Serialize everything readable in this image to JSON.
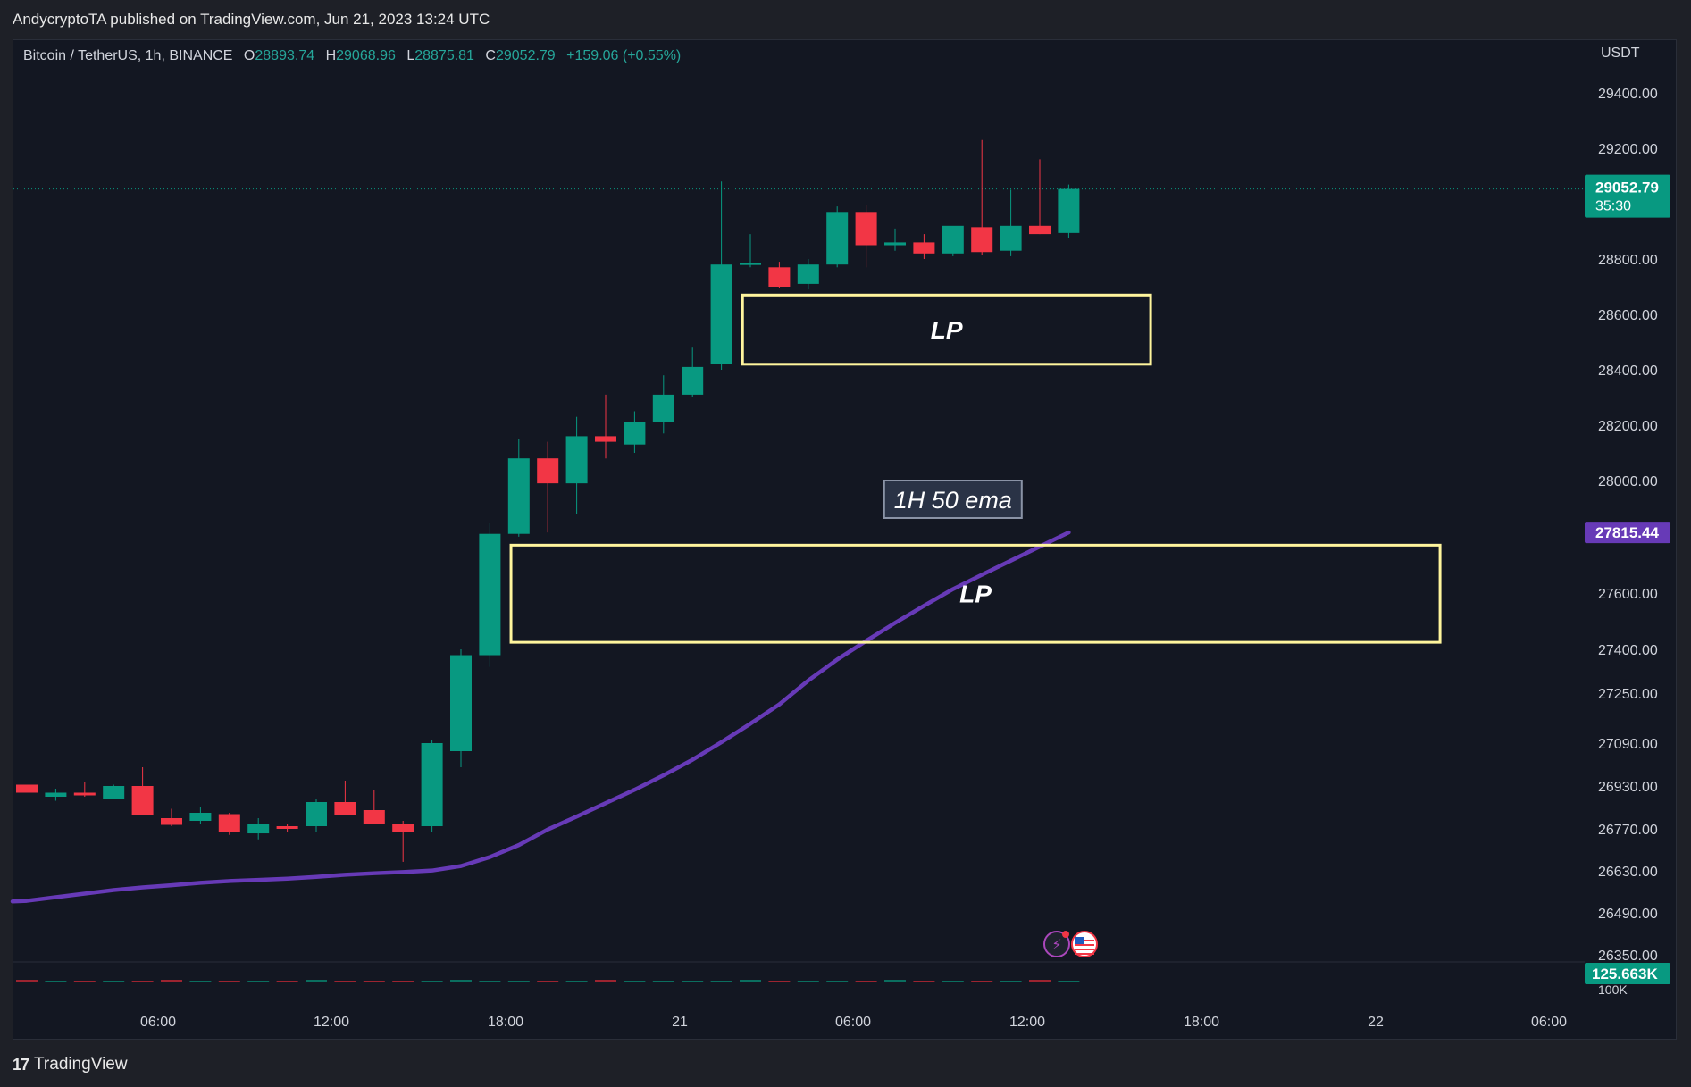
{
  "header": {
    "publisher_line": "AndycryptoTA published on TradingView.com, Jun 21, 2023 13:24 UTC"
  },
  "legend": {
    "symbol": "Bitcoin / TetherUS, 1h, BINANCE",
    "open_label": "O",
    "open": "28893.74",
    "high_label": "H",
    "high": "29068.96",
    "low_label": "L",
    "low": "28875.81",
    "close_label": "C",
    "close": "29052.79",
    "change": "+159.06 (+0.55%)"
  },
  "axis": {
    "unit": "USDT"
  },
  "footer": {
    "brand": "TradingView"
  },
  "colors": {
    "up": "#089981",
    "down": "#f23645",
    "ema": "#673ab7",
    "box": "#fff59d",
    "background": "#131722"
  },
  "chart_data": {
    "type": "candlestick",
    "symbol": "BTCUSDT",
    "timeframe": "1h",
    "exchange": "BINANCE",
    "y_ticks": [
      26350,
      26490,
      26630,
      26770,
      26930,
      27090,
      27250,
      27400,
      27600,
      27815.44,
      28000,
      28200,
      28400,
      28600,
      28800,
      29000,
      29200,
      29400
    ],
    "y_tick_labels": [
      "26350.00",
      "26490.00",
      "26630.00",
      "26770.00",
      "26930.00",
      "27090.00",
      "27250.00",
      "27400.00",
      "27600.00",
      "28000.00",
      "28200.00",
      "28400.00",
      "28600.00",
      "28800.00",
      "29200.00",
      "29400.00"
    ],
    "x_tick_labels": [
      "06:00",
      "12:00",
      "18:00",
      "21",
      "06:00",
      "12:00",
      "18:00",
      "22",
      "06:00"
    ],
    "price_label": {
      "value": "29052.79",
      "countdown": "35:30"
    },
    "ema_label": {
      "value": "27815.44"
    },
    "volume_label": "125.663K",
    "volume_axis_label": "100K",
    "candles": [
      {
        "o": 26935,
        "h": 26935,
        "l": 26905,
        "c": 26905
      },
      {
        "o": 26890,
        "h": 26920,
        "l": 26875,
        "c": 26905
      },
      {
        "o": 26905,
        "h": 26945,
        "l": 26890,
        "c": 26895
      },
      {
        "o": 26880,
        "h": 26935,
        "l": 26880,
        "c": 26930
      },
      {
        "o": 26930,
        "h": 27000,
        "l": 26820,
        "c": 26820
      },
      {
        "o": 26810,
        "h": 26845,
        "l": 26780,
        "c": 26785
      },
      {
        "o": 26800,
        "h": 26850,
        "l": 26790,
        "c": 26830
      },
      {
        "o": 26825,
        "h": 26830,
        "l": 26750,
        "c": 26760
      },
      {
        "o": 26755,
        "h": 26810,
        "l": 26735,
        "c": 26790
      },
      {
        "o": 26780,
        "h": 26790,
        "l": 26760,
        "c": 26770
      },
      {
        "o": 26780,
        "h": 26880,
        "l": 26760,
        "c": 26870
      },
      {
        "o": 26870,
        "h": 26950,
        "l": 26820,
        "c": 26820
      },
      {
        "o": 26840,
        "h": 26915,
        "l": 26790,
        "c": 26790
      },
      {
        "o": 26790,
        "h": 26800,
        "l": 26660,
        "c": 26760
      },
      {
        "o": 26780,
        "h": 27100,
        "l": 26760,
        "c": 27090
      },
      {
        "o": 27060,
        "h": 27400,
        "l": 27000,
        "c": 27380
      },
      {
        "o": 27380,
        "h": 27850,
        "l": 27340,
        "c": 27810
      },
      {
        "o": 27810,
        "h": 28150,
        "l": 27800,
        "c": 28080
      },
      {
        "o": 28080,
        "h": 28140,
        "l": 27815,
        "c": 27990
      },
      {
        "o": 27990,
        "h": 28230,
        "l": 27880,
        "c": 28160
      },
      {
        "o": 28160,
        "h": 28310,
        "l": 28080,
        "c": 28140
      },
      {
        "o": 28130,
        "h": 28250,
        "l": 28100,
        "c": 28210
      },
      {
        "o": 28210,
        "h": 28380,
        "l": 28170,
        "c": 28310
      },
      {
        "o": 28310,
        "h": 28480,
        "l": 28300,
        "c": 28410
      },
      {
        "o": 28420,
        "h": 29080,
        "l": 28400,
        "c": 28780
      },
      {
        "o": 28780,
        "h": 28890,
        "l": 28770,
        "c": 28785
      },
      {
        "o": 28770,
        "h": 28790,
        "l": 28695,
        "c": 28700
      },
      {
        "o": 28710,
        "h": 28800,
        "l": 28690,
        "c": 28780
      },
      {
        "o": 28780,
        "h": 28990,
        "l": 28770,
        "c": 28970
      },
      {
        "o": 28970,
        "h": 28995,
        "l": 28770,
        "c": 28850
      },
      {
        "o": 28850,
        "h": 28910,
        "l": 28830,
        "c": 28860
      },
      {
        "o": 28860,
        "h": 28890,
        "l": 28800,
        "c": 28820
      },
      {
        "o": 28820,
        "h": 28915,
        "l": 28810,
        "c": 28920
      },
      {
        "o": 28915,
        "h": 29230,
        "l": 28815,
        "c": 28825
      },
      {
        "o": 28830,
        "h": 29050,
        "l": 28810,
        "c": 28920
      },
      {
        "o": 28920,
        "h": 29160,
        "l": 28890,
        "c": 28890
      },
      {
        "o": 28894,
        "h": 29069,
        "l": 28876,
        "c": 29053
      }
    ],
    "ema": {
      "name": "1H 50 ema",
      "values": [
        26530,
        26542,
        26554,
        26566,
        26575,
        26582,
        26590,
        26596,
        26600,
        26604,
        26610,
        26617,
        26622,
        26626,
        26631,
        26646,
        26676,
        26716,
        26768,
        26816,
        26866,
        26916,
        26970,
        27028,
        27093,
        27152,
        27214,
        27293,
        27365,
        27430,
        27494,
        27555,
        27614,
        27665,
        27715,
        27765,
        27815
      ]
    },
    "annotations": [
      {
        "type": "box",
        "label": "LP",
        "price_top": 28670,
        "price_bottom": 28420,
        "from_candle": 25.1,
        "to_candle": 39.2
      },
      {
        "type": "box",
        "label": "LP",
        "price_top": 27770,
        "price_bottom": 27425,
        "from_candle": 17.1,
        "to_candle": 49.2
      },
      {
        "type": "label",
        "text": "1H 50 ema",
        "price": 27930,
        "candle": 32
      }
    ]
  }
}
